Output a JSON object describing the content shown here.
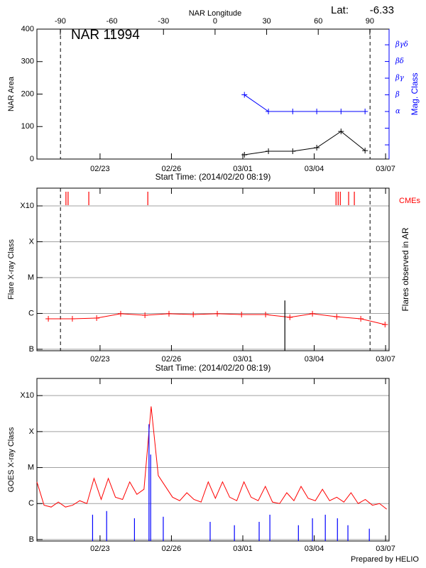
{
  "chart_data": [
    {
      "type": "line",
      "title": "NAR 11994",
      "lat_label": "Lat:",
      "lat": -6.33,
      "ylabel": "NAR Area",
      "y2label": "Mag. Class",
      "y2color": "#0000ff",
      "xlabel": "Start Time: (2014/02/20 08:19)",
      "x2label": "NAR Longitude",
      "x2lim": [
        -103.6,
        101.2
      ],
      "x2ticks": [
        -90,
        -60,
        -30,
        0,
        30,
        60,
        90
      ],
      "xlim": [
        0,
        14.8
      ],
      "xticks": [
        {
          "value": 2.653,
          "label": "02/23"
        },
        {
          "value": 5.653,
          "label": "02/26"
        },
        {
          "value": 8.653,
          "label": "03/01"
        },
        {
          "value": 11.653,
          "label": "03/04"
        },
        {
          "value": 14.653,
          "label": "03/07"
        }
      ],
      "ylim": [
        0,
        400
      ],
      "yticks": [
        0,
        100,
        200,
        300,
        400
      ],
      "y2lim": [
        0.15,
        7.94
      ],
      "y2ticks": [
        {
          "value": 3,
          "label": "α"
        },
        {
          "value": 4,
          "label": "β"
        },
        {
          "value": 5,
          "label": "βγ"
        },
        {
          "value": 6,
          "label": "βδ"
        },
        {
          "value": 7,
          "label": "βγδ"
        }
      ],
      "y2minorticks": [
        1,
        2
      ],
      "markers": [
        0.99,
        14.0
      ],
      "series": [
        {
          "color": "#000000",
          "style": "line",
          "marker": "plus",
          "x": [
            8.72,
            9.73,
            10.75,
            11.76,
            12.78,
            13.79
          ],
          "values": [
            13,
            24,
            24,
            35,
            85,
            26
          ]
        },
        {
          "color": "#0000ff",
          "style": "line",
          "marker": "plus",
          "axis": "y2",
          "x": [
            8.72,
            9.73,
            10.75,
            11.76,
            12.78,
            13.79
          ],
          "values": [
            4,
            3,
            3,
            3,
            3,
            3
          ]
        }
      ]
    },
    {
      "type": "line",
      "ylabel": "Flare X-ray Class",
      "y2label": "Flares observed in AR",
      "xlabel": "Start Time: (2014/02/20 08:19)",
      "log": true,
      "grid": true,
      "xlim": [
        0,
        14.8
      ],
      "xticks": [
        {
          "value": 2.653,
          "label": "02/23"
        },
        {
          "value": 5.653,
          "label": "02/26"
        },
        {
          "value": 8.653,
          "label": "03/01"
        },
        {
          "value": 11.653,
          "label": "03/04"
        },
        {
          "value": 14.653,
          "label": "03/07"
        }
      ],
      "ylim": [
        9.1e-08,
        0.00313
      ],
      "yticks": [
        {
          "value": 1e-07,
          "label": "B"
        },
        {
          "value": 1e-06,
          "label": "C"
        },
        {
          "value": 1e-05,
          "label": "M"
        },
        {
          "value": 0.0001,
          "label": "X"
        },
        {
          "value": 0.001,
          "label": "X10"
        }
      ],
      "markers": [
        0.99,
        14.0
      ],
      "cmes": {
        "label": "CMEs",
        "color": "#ff0000",
        "x": [
          1.22,
          1.31,
          2.18,
          4.66,
          12.57,
          12.66,
          12.75,
          13.1,
          13.34
        ]
      },
      "series": [
        {
          "color": "#ff0000",
          "style": "line",
          "marker": "plus",
          "x": [
            0.48,
            1.49,
            2.51,
            3.52,
            4.54,
            5.55,
            6.57,
            7.58,
            8.6,
            9.61,
            10.63,
            11.58,
            12.6,
            13.61,
            14.63
          ],
          "values": [
            7.1e-07,
            7.1e-07,
            7.4e-07,
            9.8e-07,
            8.9e-07,
            9.8e-07,
            9.3e-07,
            9.8e-07,
            9.3e-07,
            9.3e-07,
            7.8e-07,
            9.8e-07,
            8.1e-07,
            7.1e-07,
            4.9e-07
          ]
        },
        {
          "color": "#000000",
          "style": "spike",
          "x": [
            10.42
          ],
          "values": [
            2.3e-06
          ]
        }
      ]
    },
    {
      "type": "line",
      "ylabel": "GOES X-ray Class",
      "log": true,
      "grid": true,
      "xlim": [
        0,
        14.8
      ],
      "xticks": [
        {
          "value": 2.653,
          "label": "02/23"
        },
        {
          "value": 5.653,
          "label": "02/26"
        },
        {
          "value": 8.653,
          "label": "03/01"
        },
        {
          "value": 11.653,
          "label": "03/04"
        },
        {
          "value": 14.653,
          "label": "03/07"
        }
      ],
      "ylim": [
        9.1e-08,
        0.003
      ],
      "yticks": [
        {
          "value": 1e-07,
          "label": "B"
        },
        {
          "value": 1e-06,
          "label": "C"
        },
        {
          "value": 1e-05,
          "label": "M"
        },
        {
          "value": 0.0001,
          "label": "X"
        },
        {
          "value": 0.001,
          "label": "X10"
        }
      ],
      "series": [
        {
          "color": "#ff0000",
          "style": "line",
          "x": [
            0,
            0.3,
            0.6,
            0.9,
            1.2,
            1.5,
            1.8,
            2.1,
            2.4,
            2.7,
            3.0,
            3.3,
            3.6,
            3.9,
            4.2,
            4.5,
            4.8,
            5.1,
            5.4,
            5.7,
            6.0,
            6.3,
            6.6,
            6.9,
            7.2,
            7.5,
            7.8,
            8.1,
            8.4,
            8.7,
            9.0,
            9.3,
            9.6,
            9.9,
            10.2,
            10.5,
            10.8,
            11.1,
            11.4,
            11.7,
            12.0,
            12.3,
            12.6,
            12.9,
            13.2,
            13.5,
            13.8,
            14.1,
            14.4,
            14.7
          ],
          "values": [
            4e-06,
            9e-07,
            8e-07,
            1.1e-06,
            8e-07,
            9e-07,
            1.2e-06,
            1e-06,
            5e-06,
            1.3e-06,
            5e-06,
            1.5e-06,
            1.3e-06,
            4e-06,
            1.8e-06,
            2.5e-06,
            0.0005,
            6e-06,
            3e-06,
            1.5e-06,
            1.2e-06,
            2e-06,
            1.3e-06,
            1.1e-06,
            4e-06,
            1.4e-06,
            4e-06,
            1.5e-06,
            1.2e-06,
            4e-06,
            1.5e-06,
            1.2e-06,
            3e-06,
            1.1e-06,
            1e-06,
            2e-06,
            1.2e-06,
            3e-06,
            1.4e-06,
            1.2e-06,
            2.5e-06,
            1.2e-06,
            1.5e-06,
            1.1e-06,
            2e-06,
            1e-06,
            1.3e-06,
            9e-07,
            1e-06,
            7e-07
          ]
        },
        {
          "color": "#0000ff",
          "style": "spike",
          "x": [
            2.34,
            2.93,
            4.1,
            4.71,
            4.78,
            5.31,
            7.28,
            8.3,
            9.34,
            9.79,
            10.99,
            11.58,
            12.12,
            12.63,
            13.07,
            13.97
          ],
          "values": [
            4.9e-07,
            6.2e-07,
            3.9e-07,
            0.00016,
            2.3e-05,
            4.3e-07,
            3.1e-07,
            2.5e-07,
            3.1e-07,
            4.9e-07,
            2.5e-07,
            3.9e-07,
            4.9e-07,
            3.9e-07,
            2.5e-07,
            2e-07
          ]
        }
      ]
    }
  ],
  "footer": "Prepared by HELIO"
}
